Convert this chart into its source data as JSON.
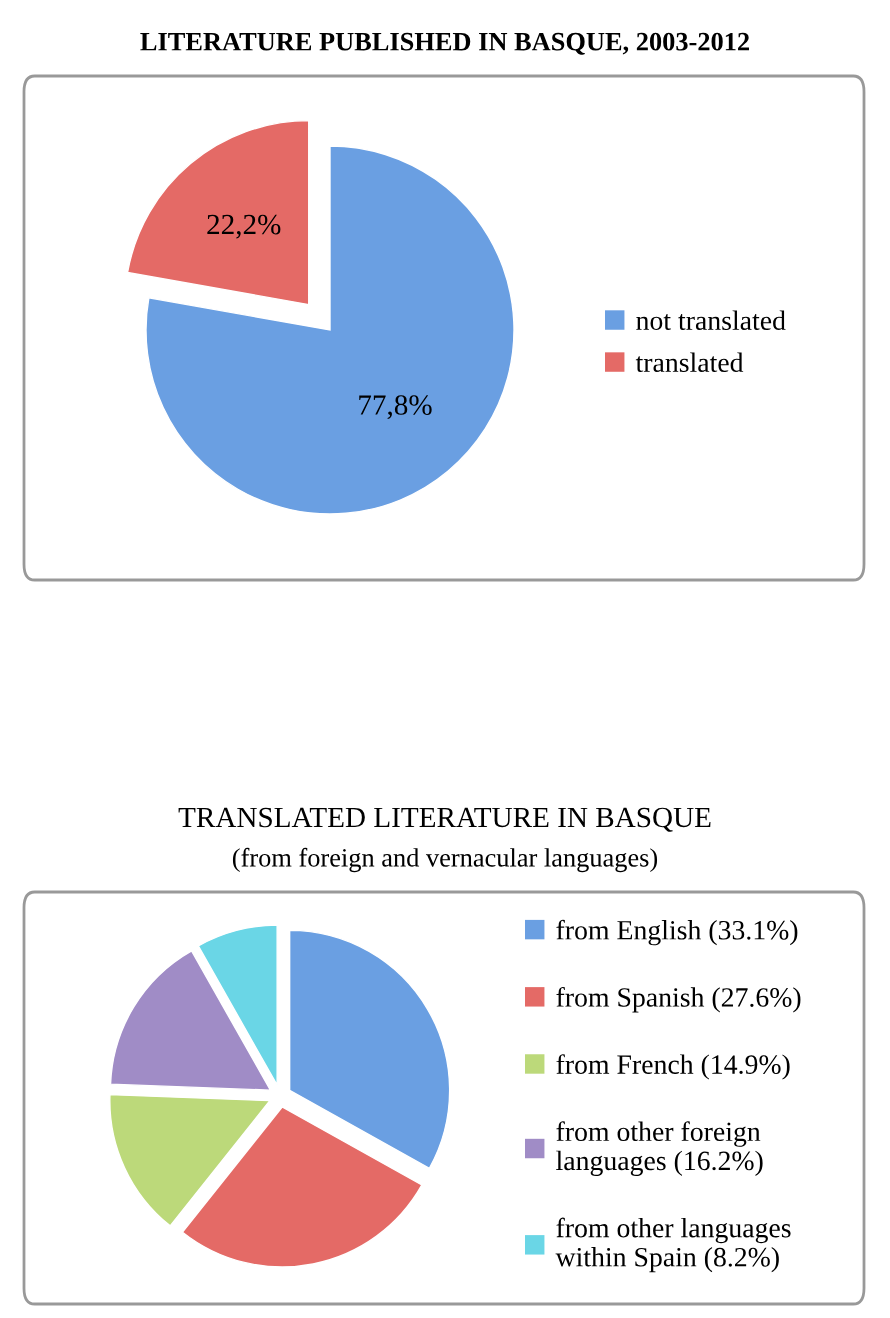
{
  "chart_data": [
    {
      "type": "pie",
      "title": "LITERATURE PUBLISHED IN BASQUE, 2003-2012",
      "categories": [
        "not translated",
        "translated"
      ],
      "values": [
        77.8,
        22.2
      ],
      "colors": [
        "#6a9fe2",
        "#e46a66"
      ],
      "value_labels": [
        "77,8%",
        "22,2%"
      ],
      "legend": "right"
    },
    {
      "type": "pie",
      "title": "TRANSLATED LITERATURE IN BASQUE",
      "subtitle": "(from foreign and vernacular languages)",
      "categories": [
        "from English (33.1%)",
        "from Spanish (27.6%)",
        "from French (14.9%)",
        "from other foreign\nlanguages (16.2%)",
        "from other languages\nwithin Spain (8.2%)"
      ],
      "values": [
        33.1,
        27.6,
        14.9,
        16.2,
        8.2
      ],
      "colors": [
        "#6a9fe2",
        "#e46a66",
        "#bcd97a",
        "#a08cc6",
        "#6ad6e6"
      ],
      "legend": "right"
    }
  ]
}
